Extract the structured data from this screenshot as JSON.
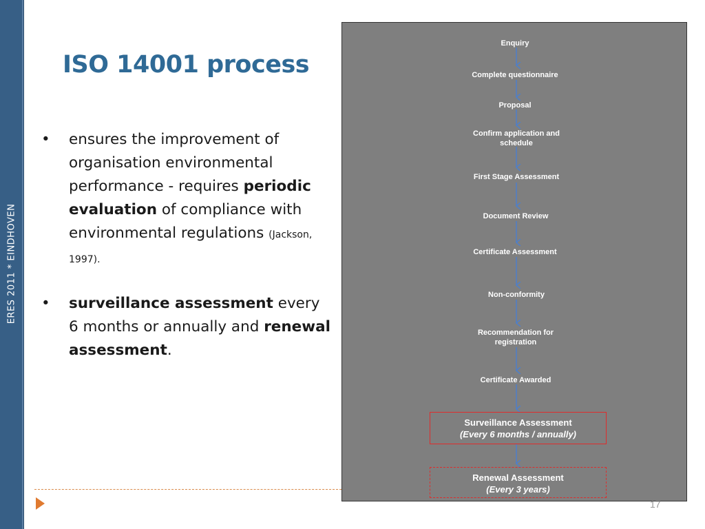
{
  "sidebar": {
    "text": "ERES 2011 * EINDHOVEN"
  },
  "slide": {
    "title": "ISO 14001 process",
    "bullet_symbol": "•",
    "bullet1": {
      "part1": "ensures the improvement of organisation environmental performance - requires ",
      "bold1": "periodic evaluation",
      "part2": " of compliance with environmental regulations ",
      "reference": "(Jackson, 1997)."
    },
    "bullet2": {
      "bold1": "surveillance assessment",
      "part1": " every 6 months or annually and ",
      "bold2": "renewal assessment",
      "part2": "."
    },
    "page_number": "17"
  },
  "flowchart": {
    "steps": [
      "Enquiry",
      "Complete questionnaire",
      "Proposal",
      "Confirm application and\nschedule",
      "First Stage Assessment",
      "Document Review",
      "Certificate Assessment",
      "Non-conformity",
      "Recommendation for\nregistration",
      "Certificate Awarded"
    ],
    "surveillance": {
      "line1": "Surveillance Assessment",
      "line2": "(Every 6 months / annually)"
    },
    "renewal": {
      "line1": "Renewal Assessment",
      "line2": "(Every 3 years)"
    }
  },
  "colors": {
    "title": "#2f6a96",
    "sidebar": "#375f86",
    "flow_background": "#7f7f7f",
    "arrow": "#4a7fd0",
    "box_border": "#e02b2b",
    "accent_orange": "#e07a30"
  }
}
